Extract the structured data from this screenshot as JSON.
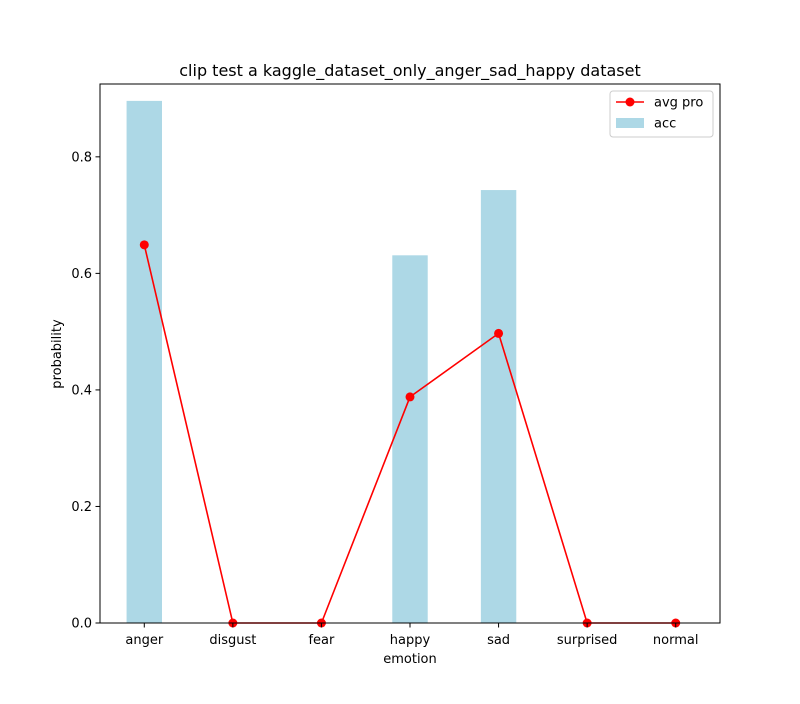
{
  "chart_data": {
    "type": "bar",
    "title": "clip test a kaggle_dataset_only_anger_sad_happy dataset",
    "xlabel": "emotion",
    "ylabel": "probability",
    "categories": [
      "anger",
      "disgust",
      "fear",
      "happy",
      "sad",
      "surprised",
      "normal"
    ],
    "ylim": [
      0,
      0.925
    ],
    "yticks": [
      0.0,
      0.2,
      0.4,
      0.6,
      0.8
    ],
    "ytick_labels": [
      "0.0",
      "0.2",
      "0.4",
      "0.6",
      "0.8"
    ],
    "grid": false,
    "legend_position": "top-right",
    "series": [
      {
        "name": "acc",
        "kind": "bar",
        "color": "#add8e6",
        "values": [
          0.896,
          0.0,
          0.0,
          0.631,
          0.743,
          0.0,
          0.0
        ]
      },
      {
        "name": "avg pro",
        "kind": "line",
        "marker": "circle",
        "color": "#ff0000",
        "values": [
          0.649,
          0.0,
          0.0,
          0.388,
          0.497,
          0.0,
          0.0
        ]
      }
    ],
    "legend": [
      {
        "label": "avg pro",
        "series": "avg pro"
      },
      {
        "label": "acc",
        "series": "acc"
      }
    ]
  }
}
